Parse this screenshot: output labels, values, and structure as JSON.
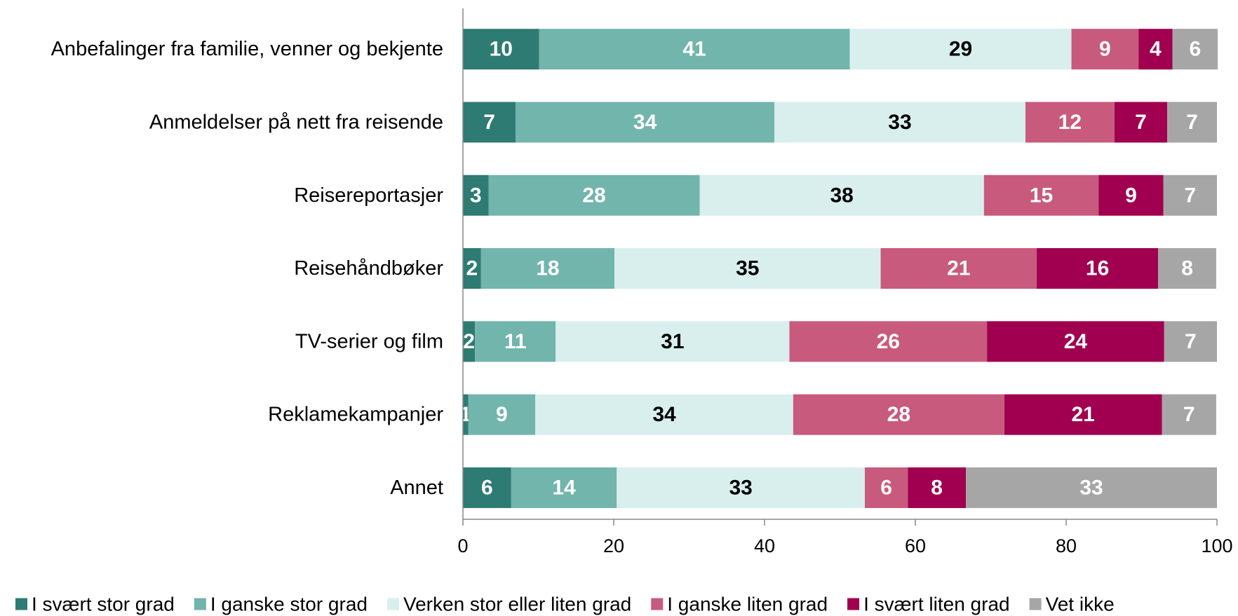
{
  "chart_data": {
    "type": "stacked-bar-horizontal",
    "categories": [
      "Anbefalinger fra familie, venner og bekjente",
      "Anmeldelser på nett fra reisende",
      "Reisereportasjer",
      "Reisehåndbøker",
      "TV-serier og film",
      "Reklamekampanjer",
      "Annet"
    ],
    "series": [
      {
        "name": "I svært stor grad",
        "color": "#2e7b73",
        "label_color": "#ffffff",
        "values": [
          10.1,
          7.0,
          3.4,
          2.4,
          1.6,
          0.7,
          6.4
        ],
        "value_labels": [
          "10",
          "7",
          "3",
          "2",
          "2",
          "1",
          "6"
        ]
      },
      {
        "name": "I ganske stor grad",
        "color": "#72b5ac",
        "label_color": "#ffffff",
        "values": [
          41.2,
          34.3,
          28.0,
          17.7,
          10.7,
          8.9,
          14.0
        ],
        "value_labels": [
          "41",
          "34",
          "28",
          "18",
          "11",
          "9",
          "14"
        ]
      },
      {
        "name": "Verken stor eller liten grad",
        "color": "#d9efed",
        "label_color": "#000000",
        "values": [
          29.4,
          33.3,
          37.7,
          35.3,
          31.0,
          34.2,
          32.9
        ],
        "value_labels": [
          "29",
          "33",
          "38",
          "35",
          "31",
          "34",
          "33"
        ]
      },
      {
        "name": "I ganske liten grad",
        "color": "#c85a7e",
        "label_color": "#ffffff",
        "values": [
          8.9,
          11.8,
          15.2,
          20.7,
          26.2,
          28.0,
          5.7
        ],
        "value_labels": [
          "9",
          "12",
          "15",
          "21",
          "26",
          "28",
          "6"
        ]
      },
      {
        "name": "I svært liten grad",
        "color": "#a0004f",
        "label_color": "#ffffff",
        "values": [
          4.5,
          7.0,
          8.6,
          16.1,
          23.5,
          20.9,
          7.7
        ],
        "value_labels": [
          "4",
          "7",
          "9",
          "16",
          "24",
          "21",
          "8"
        ]
      },
      {
        "name": "Vet ikke",
        "color": "#a6a6a6",
        "label_color": "#ffffff",
        "values": [
          6.0,
          6.6,
          7.1,
          7.7,
          7.0,
          7.2,
          33.3
        ],
        "value_labels": [
          "6",
          "7",
          "7",
          "8",
          "7",
          "7",
          "33"
        ]
      }
    ],
    "xlim": [
      0,
      100
    ],
    "xticks": [
      0,
      20,
      40,
      60,
      80,
      100
    ],
    "grid": false,
    "legend": "bottom"
  }
}
